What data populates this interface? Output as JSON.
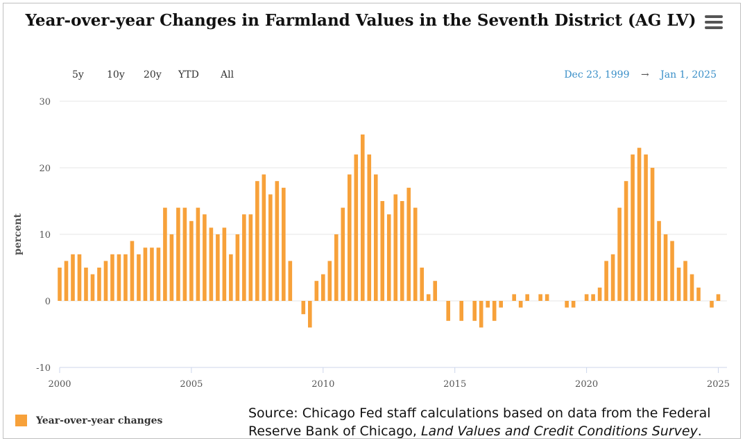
{
  "title": "Year-over-year Changes in Farmland Values in the Seventh District (AG LV)",
  "range_buttons": [
    "5y",
    "10y",
    "20y",
    "YTD",
    "All"
  ],
  "date_range": {
    "from": "Dec 23, 1999",
    "arrow": "→",
    "to": "Jan 1, 2025"
  },
  "source": {
    "prefix": "Source: Chicago Fed staff calculations based on data from the Federal Reserve Bank of Chicago, ",
    "italic": "Land Values and Credit Conditions Survey",
    "suffix": "."
  },
  "colors": {
    "bar": "#f7a13a",
    "link": "#3a8fc8"
  },
  "chart_data": {
    "type": "bar",
    "title": "Year-over-year Changes in Farmland Values in the Seventh District (AG LV)",
    "xlabel": "",
    "ylabel": "percent",
    "ylim": [
      -10,
      30
    ],
    "yticks": [
      -10,
      0,
      10,
      20,
      30
    ],
    "xlim": [
      2000,
      2025.25
    ],
    "xticks": [
      2000,
      2005,
      2010,
      2015,
      2020,
      2025
    ],
    "legend": "bottom-left",
    "series": [
      {
        "name": "Year-over-year changes",
        "x": [
          2000.0,
          2000.25,
          2000.5,
          2000.75,
          2001.0,
          2001.25,
          2001.5,
          2001.75,
          2002.0,
          2002.25,
          2002.5,
          2002.75,
          2003.0,
          2003.25,
          2003.5,
          2003.75,
          2004.0,
          2004.25,
          2004.5,
          2004.75,
          2005.0,
          2005.25,
          2005.5,
          2005.75,
          2006.0,
          2006.25,
          2006.5,
          2006.75,
          2007.0,
          2007.25,
          2007.5,
          2007.75,
          2008.0,
          2008.25,
          2008.5,
          2008.75,
          2009.0,
          2009.25,
          2009.5,
          2009.75,
          2010.0,
          2010.25,
          2010.5,
          2010.75,
          2011.0,
          2011.25,
          2011.5,
          2011.75,
          2012.0,
          2012.25,
          2012.5,
          2012.75,
          2013.0,
          2013.25,
          2013.5,
          2013.75,
          2014.0,
          2014.25,
          2014.5,
          2014.75,
          2015.0,
          2015.25,
          2015.5,
          2015.75,
          2016.0,
          2016.25,
          2016.5,
          2016.75,
          2017.0,
          2017.25,
          2017.5,
          2017.75,
          2018.0,
          2018.25,
          2018.5,
          2018.75,
          2019.0,
          2019.25,
          2019.5,
          2019.75,
          2020.0,
          2020.25,
          2020.5,
          2020.75,
          2021.0,
          2021.25,
          2021.5,
          2021.75,
          2022.0,
          2022.25,
          2022.5,
          2022.75,
          2023.0,
          2023.25,
          2023.5,
          2023.75,
          2024.0,
          2024.25,
          2024.5,
          2024.75,
          2025.0
        ],
        "values": [
          5,
          6,
          7,
          7,
          5,
          4,
          5,
          6,
          7,
          7,
          7,
          9,
          7,
          8,
          8,
          8,
          14,
          10,
          14,
          14,
          12,
          14,
          13,
          11,
          10,
          11,
          7,
          10,
          13,
          13,
          18,
          19,
          16,
          18,
          17,
          6,
          0,
          -2,
          -4,
          3,
          4,
          6,
          10,
          14,
          19,
          22,
          25,
          22,
          19,
          15,
          13,
          16,
          15,
          17,
          14,
          5,
          1,
          3,
          0,
          -3,
          0,
          -3,
          0,
          -3,
          -4,
          -1,
          -3,
          -1,
          0,
          1,
          -1,
          1,
          0,
          1,
          1,
          0,
          0,
          -1,
          -1,
          0,
          1,
          1,
          2,
          6,
          7,
          14,
          18,
          22,
          23,
          22,
          20,
          12,
          10,
          9,
          5,
          6,
          4,
          2,
          0,
          -1,
          1
        ]
      }
    ]
  }
}
